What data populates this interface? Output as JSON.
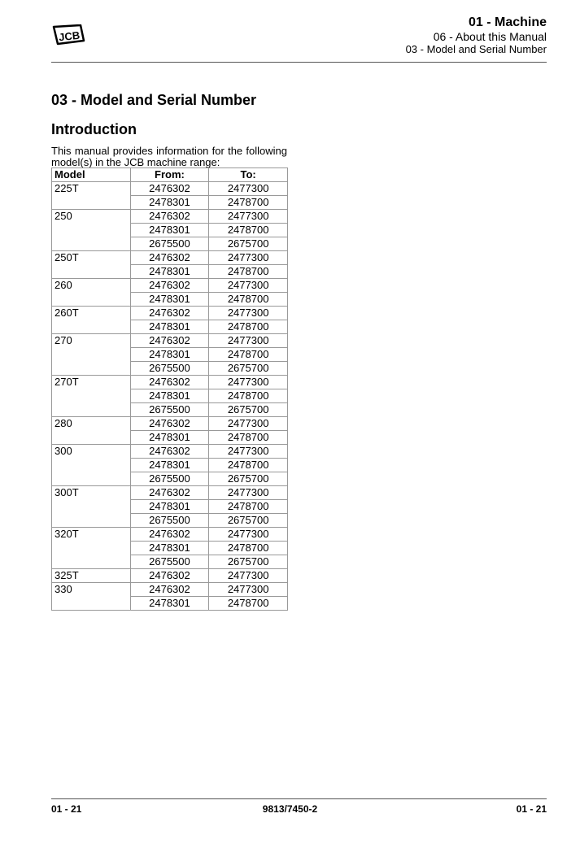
{
  "header": {
    "logo_text": "JCB",
    "section": "01 - Machine",
    "subsection": "06 - About this Manual",
    "topic": "03 - Model and Serial Number"
  },
  "title": "03 - Model and Serial Number",
  "subtitle": "Introduction",
  "intro": "This manual provides information for the following model(s) in the JCB machine range:",
  "table": {
    "headers": [
      "Model",
      "From:",
      "To:"
    ],
    "models": [
      {
        "model": "225T",
        "ranges": [
          [
            "2476302",
            "2477300"
          ],
          [
            "2478301",
            "2478700"
          ]
        ]
      },
      {
        "model": "250",
        "ranges": [
          [
            "2476302",
            "2477300"
          ],
          [
            "2478301",
            "2478700"
          ],
          [
            "2675500",
            "2675700"
          ]
        ]
      },
      {
        "model": "250T",
        "ranges": [
          [
            "2476302",
            "2477300"
          ],
          [
            "2478301",
            "2478700"
          ]
        ]
      },
      {
        "model": "260",
        "ranges": [
          [
            "2476302",
            "2477300"
          ],
          [
            "2478301",
            "2478700"
          ]
        ]
      },
      {
        "model": "260T",
        "ranges": [
          [
            "2476302",
            "2477300"
          ],
          [
            "2478301",
            "2478700"
          ]
        ]
      },
      {
        "model": "270",
        "ranges": [
          [
            "2476302",
            "2477300"
          ],
          [
            "2478301",
            "2478700"
          ],
          [
            "2675500",
            "2675700"
          ]
        ]
      },
      {
        "model": "270T",
        "ranges": [
          [
            "2476302",
            "2477300"
          ],
          [
            "2478301",
            "2478700"
          ],
          [
            "2675500",
            "2675700"
          ]
        ]
      },
      {
        "model": "280",
        "ranges": [
          [
            "2476302",
            "2477300"
          ],
          [
            "2478301",
            "2478700"
          ]
        ]
      },
      {
        "model": "300",
        "ranges": [
          [
            "2476302",
            "2477300"
          ],
          [
            "2478301",
            "2478700"
          ],
          [
            "2675500",
            "2675700"
          ]
        ]
      },
      {
        "model": "300T",
        "ranges": [
          [
            "2476302",
            "2477300"
          ],
          [
            "2478301",
            "2478700"
          ],
          [
            "2675500",
            "2675700"
          ]
        ]
      },
      {
        "model": "320T",
        "ranges": [
          [
            "2476302",
            "2477300"
          ],
          [
            "2478301",
            "2478700"
          ],
          [
            "2675500",
            "2675700"
          ]
        ]
      },
      {
        "model": "325T",
        "ranges": [
          [
            "2476302",
            "2477300"
          ]
        ]
      },
      {
        "model": "330",
        "ranges": [
          [
            "2476302",
            "2477300"
          ],
          [
            "2478301",
            "2478700"
          ]
        ]
      }
    ]
  },
  "footer": {
    "left": "01 - 21",
    "center": "9813/7450-2",
    "right": "01 - 21"
  }
}
